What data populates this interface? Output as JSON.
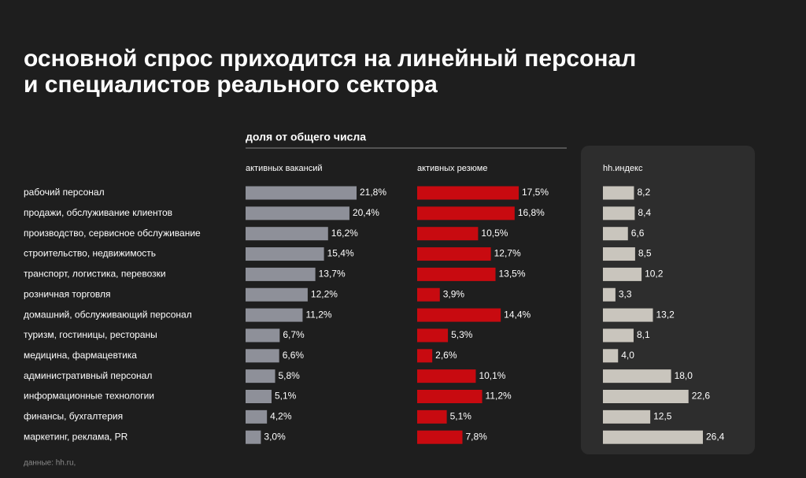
{
  "chart_data": {
    "type": "bar",
    "title": "основной спрос приходится на линейный персонал",
    "title_line2": "и специалистов реального сектора",
    "subtitle": "доля от общего числа",
    "categories": [
      "рабочий персонал",
      "продажи, обслуживание клиентов",
      "производство, сервисное обслуживание",
      "строительство, недвижимость",
      "транспорт, логистика, перевозки",
      "розничная торговля",
      "домашний, обслуживающий персонал",
      "туризм, гостиницы, рестораны",
      "медицина, фармацевтика",
      "административный персонал",
      "информационные технологии",
      "финансы, бухгалтерия",
      "маркетинг, реклама, PR"
    ],
    "series": [
      {
        "name": "активных вакансий",
        "color": "#8e9099",
        "values": [
          21.8,
          20.4,
          16.2,
          15.4,
          13.7,
          12.2,
          11.2,
          6.7,
          6.6,
          5.8,
          5.1,
          4.2,
          3.0
        ],
        "value_labels": [
          "21,8%",
          "20,4%",
          "16,2%",
          "15,4%",
          "13,7%",
          "12,2%",
          "11,2%",
          "6,7%",
          "6,6%",
          "5,8%",
          "5,1%",
          "4,2%",
          "3,0%"
        ]
      },
      {
        "name": "активных резюме",
        "color": "#c80a10",
        "values": [
          17.5,
          16.8,
          10.5,
          12.7,
          13.5,
          3.9,
          14.4,
          5.3,
          2.6,
          10.1,
          11.2,
          5.1,
          7.8
        ],
        "value_labels": [
          "17,5%",
          "16,8%",
          "10,5%",
          "12,7%",
          "13,5%",
          "3,9%",
          "14,4%",
          "5,3%",
          "2,6%",
          "10,1%",
          "11,2%",
          "5,1%",
          "7,8%"
        ]
      },
      {
        "name": "hh.индекс",
        "color": "#c9c5bd",
        "values": [
          8.2,
          8.4,
          6.6,
          8.5,
          10.2,
          3.3,
          13.2,
          8.1,
          4.0,
          18.0,
          22.6,
          12.5,
          26.4
        ],
        "value_labels": [
          "8,2",
          "8,4",
          "6,6",
          "8,5",
          "10,2",
          "3,3",
          "13,2",
          "8,1",
          "4,0",
          "18,0",
          "22,6",
          "12,5",
          "26,4"
        ]
      }
    ],
    "source": "данные: hh.ru,"
  }
}
